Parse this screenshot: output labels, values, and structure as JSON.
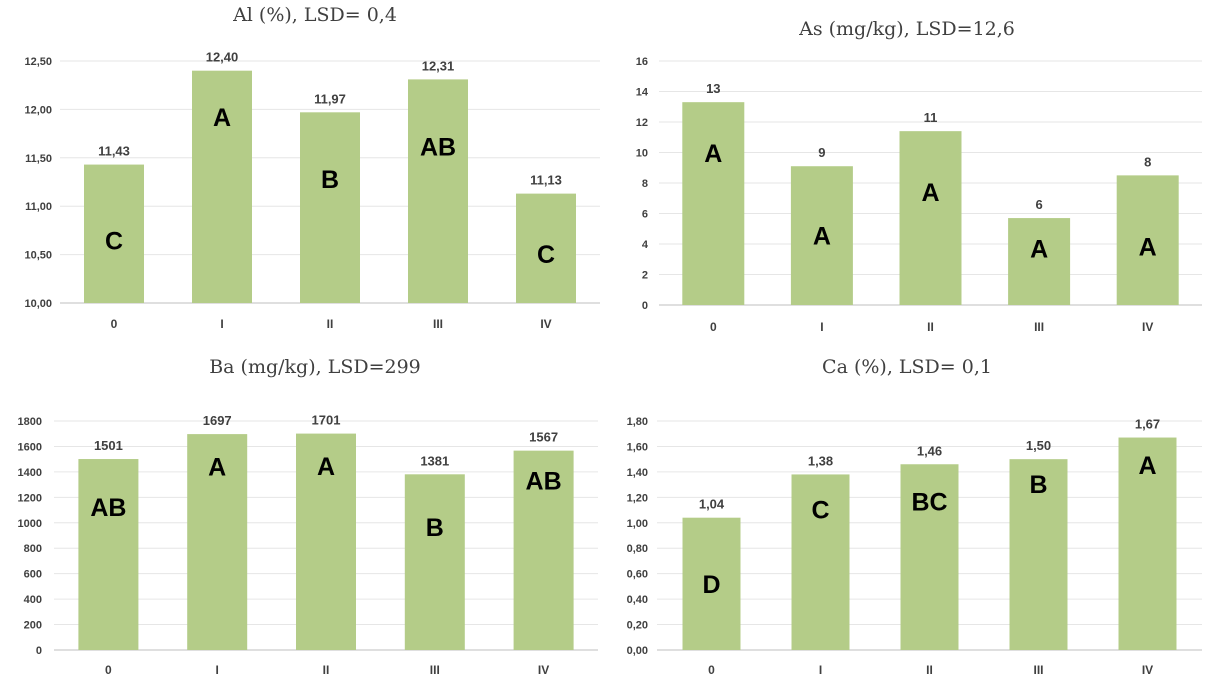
{
  "colors": {
    "bar": "#b4cc88",
    "text": "#404040",
    "letters": "#000000"
  },
  "chart_data": [
    {
      "type": "bar",
      "title": "Al (%), LSD= 0,4",
      "categories": [
        "0",
        "I",
        "II",
        "III",
        "IV"
      ],
      "values": [
        11.43,
        12.4,
        11.97,
        12.31,
        11.13
      ],
      "value_labels": [
        "11,43",
        "12,40",
        "11,97",
        "12,31",
        "11,13"
      ],
      "group_letters": [
        "C",
        "A",
        "B",
        "AB",
        "C"
      ],
      "ylim": [
        10,
        12.5
      ],
      "yticks": [
        10,
        10.5,
        11,
        11.5,
        12,
        12.5
      ],
      "ytick_labels": [
        "10,00",
        "10,50",
        "11,00",
        "11,50",
        "12,00",
        "12,50"
      ],
      "xlabel": "",
      "ylabel": "",
      "grid": true,
      "legend": "none"
    },
    {
      "type": "bar",
      "title": "As (mg/kg), LSD=12,6",
      "categories": [
        "0",
        "I",
        "II",
        "III",
        "IV"
      ],
      "values": [
        13.3,
        9.1,
        11.4,
        5.7,
        8.5
      ],
      "value_labels": [
        "13",
        "9",
        "11",
        "6",
        "8"
      ],
      "group_letters": [
        "A",
        "A",
        "A",
        "A",
        "A"
      ],
      "ylim": [
        0,
        16
      ],
      "yticks": [
        0,
        2,
        4,
        6,
        8,
        10,
        12,
        14,
        16
      ],
      "ytick_labels": [
        "0",
        "2",
        "4",
        "6",
        "8",
        "10",
        "12",
        "14",
        "16"
      ],
      "xlabel": "",
      "ylabel": "",
      "grid": true,
      "legend": "none"
    },
    {
      "type": "bar",
      "title": "Ba (mg/kg), LSD=299",
      "categories": [
        "0",
        "I",
        "II",
        "III",
        "IV"
      ],
      "values": [
        1501,
        1697,
        1701,
        1381,
        1567
      ],
      "value_labels": [
        "1501",
        "1697",
        "1701",
        "1381",
        "1567"
      ],
      "group_letters": [
        "AB",
        "A",
        "A",
        "B",
        "AB"
      ],
      "ylim": [
        0,
        1800
      ],
      "yticks": [
        0,
        200,
        400,
        600,
        800,
        1000,
        1200,
        1400,
        1600,
        1800
      ],
      "ytick_labels": [
        "0",
        "200",
        "400",
        "600",
        "800",
        "1000",
        "1200",
        "1400",
        "1600",
        "1800"
      ],
      "xlabel": "",
      "ylabel": "",
      "grid": true,
      "legend": "none"
    },
    {
      "type": "bar",
      "title": "Ca (%), LSD= 0,1",
      "categories": [
        "0",
        "I",
        "II",
        "III",
        "IV"
      ],
      "values": [
        1.04,
        1.38,
        1.46,
        1.5,
        1.67
      ],
      "value_labels": [
        "1,04",
        "1,38",
        "1,46",
        "1,50",
        "1,67"
      ],
      "group_letters": [
        "D",
        "C",
        "BC",
        "B",
        "A"
      ],
      "ylim": [
        0,
        1.8
      ],
      "yticks": [
        0,
        0.2,
        0.4,
        0.6,
        0.8,
        1.0,
        1.2,
        1.4,
        1.6,
        1.8
      ],
      "ytick_labels": [
        "0,00",
        "0,20",
        "0,40",
        "0,60",
        "0,80",
        "1,00",
        "1,20",
        "1,40",
        "1,60",
        "1,80"
      ],
      "xlabel": "",
      "ylabel": "",
      "grid": true,
      "legend": "none"
    }
  ]
}
